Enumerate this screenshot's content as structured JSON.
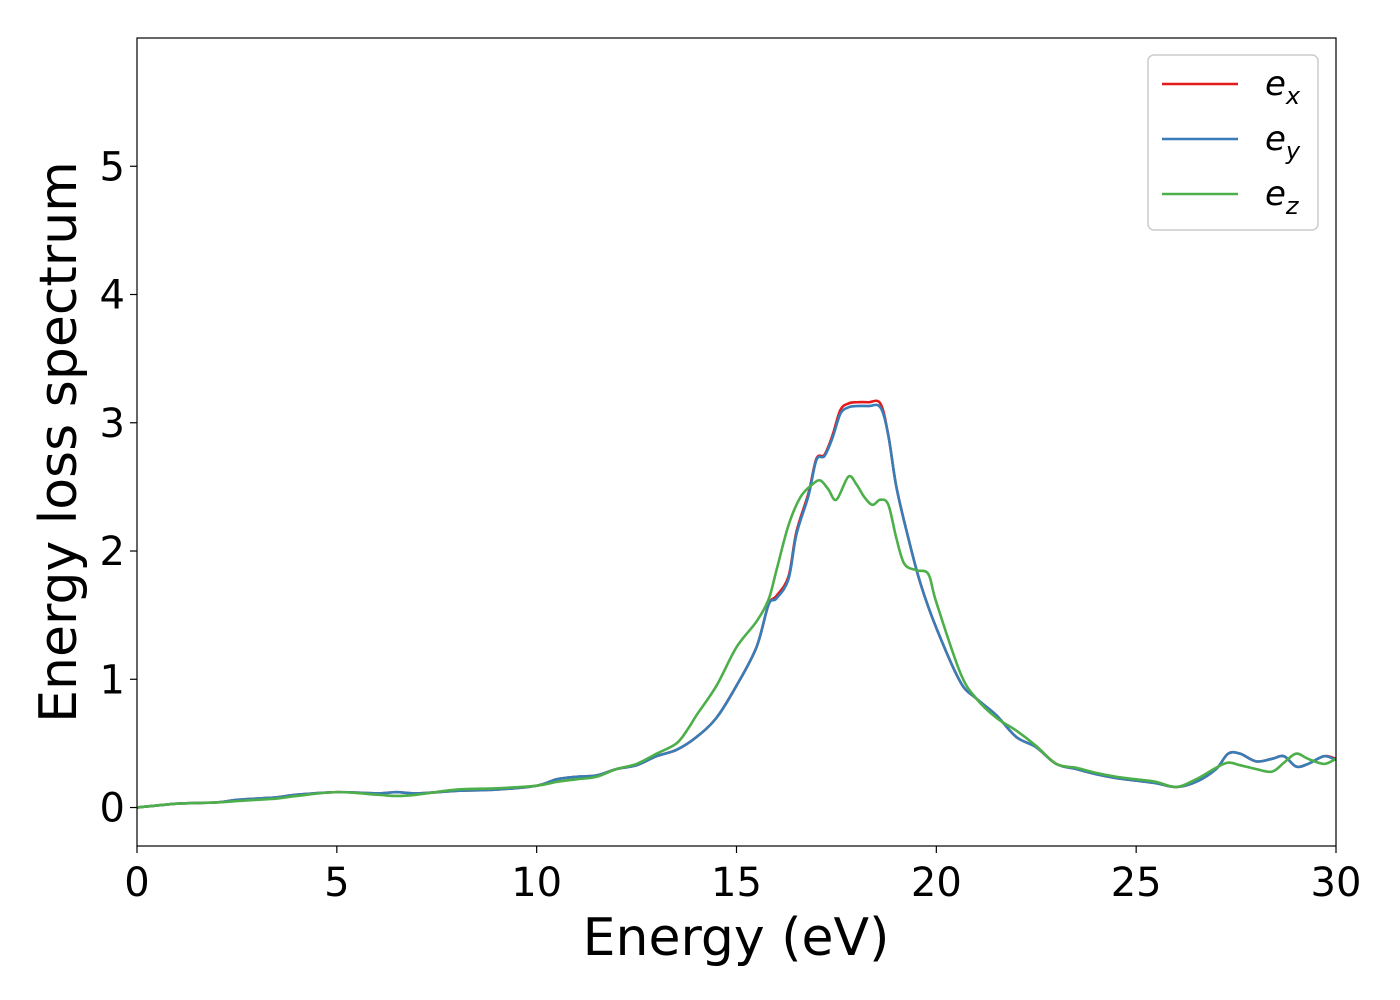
{
  "chart_data": {
    "type": "line",
    "xlabel": "Energy (eV)",
    "ylabel": "Energy loss spectrum",
    "xlim": [
      0,
      30
    ],
    "ylim": [
      -0.3,
      6.0
    ],
    "xticks": [
      0,
      5,
      10,
      15,
      20,
      25,
      30
    ],
    "yticks": [
      0,
      1,
      2,
      3,
      4,
      5
    ],
    "grid": false,
    "legend_position": "top-right",
    "series": [
      {
        "name": "e_x",
        "legend_base": "e",
        "legend_sub": "x",
        "color": "#e41a1c",
        "x": [
          0,
          1,
          2,
          2.5,
          3,
          3.5,
          4,
          5,
          6,
          6.5,
          7,
          8,
          9,
          10,
          10.5,
          11,
          11.5,
          12,
          12.5,
          13,
          13.5,
          14,
          14.5,
          15,
          15.5,
          15.8,
          16,
          16.3,
          16.5,
          16.8,
          17,
          17.2,
          17.4,
          17.6,
          17.8,
          18,
          18.3,
          18.6,
          18.8,
          19,
          19.3,
          19.6,
          20,
          20.6,
          21,
          21.5,
          22,
          22.5,
          23,
          23.5,
          24,
          24.5,
          25,
          25.5,
          26,
          26.5,
          27,
          27.3,
          27.6,
          28,
          28.4,
          28.7,
          29,
          29.3,
          29.7,
          30
        ],
        "y": [
          0.0,
          0.03,
          0.04,
          0.06,
          0.07,
          0.08,
          0.1,
          0.12,
          0.11,
          0.12,
          0.11,
          0.13,
          0.14,
          0.17,
          0.22,
          0.24,
          0.25,
          0.3,
          0.33,
          0.4,
          0.45,
          0.55,
          0.7,
          0.95,
          1.25,
          1.58,
          1.65,
          1.8,
          2.15,
          2.45,
          2.72,
          2.75,
          2.9,
          3.1,
          3.15,
          3.16,
          3.16,
          3.15,
          2.9,
          2.5,
          2.1,
          1.75,
          1.4,
          0.98,
          0.85,
          0.72,
          0.55,
          0.47,
          0.34,
          0.3,
          0.26,
          0.23,
          0.21,
          0.19,
          0.16,
          0.2,
          0.3,
          0.42,
          0.42,
          0.36,
          0.38,
          0.4,
          0.32,
          0.34,
          0.4,
          0.38
        ]
      },
      {
        "name": "e_y",
        "legend_base": "e",
        "legend_sub": "y",
        "color": "#377eb8",
        "x": [
          0,
          1,
          2,
          2.5,
          3,
          3.5,
          4,
          5,
          6,
          6.5,
          7,
          8,
          9,
          10,
          10.5,
          11,
          11.5,
          12,
          12.5,
          13,
          13.5,
          14,
          14.5,
          15,
          15.5,
          15.8,
          16,
          16.3,
          16.5,
          16.8,
          17,
          17.2,
          17.4,
          17.6,
          17.8,
          18,
          18.3,
          18.6,
          18.8,
          19,
          19.3,
          19.6,
          20,
          20.6,
          21,
          21.5,
          22,
          22.5,
          23,
          23.5,
          24,
          24.5,
          25,
          25.5,
          26,
          26.5,
          27,
          27.3,
          27.6,
          28,
          28.4,
          28.7,
          29,
          29.3,
          29.7,
          30
        ],
        "y": [
          0.0,
          0.03,
          0.04,
          0.06,
          0.07,
          0.08,
          0.1,
          0.12,
          0.11,
          0.12,
          0.11,
          0.13,
          0.14,
          0.17,
          0.22,
          0.24,
          0.25,
          0.3,
          0.33,
          0.4,
          0.45,
          0.55,
          0.7,
          0.95,
          1.25,
          1.58,
          1.63,
          1.78,
          2.13,
          2.43,
          2.71,
          2.74,
          2.88,
          3.07,
          3.12,
          3.13,
          3.13,
          3.12,
          2.9,
          2.5,
          2.1,
          1.75,
          1.4,
          0.98,
          0.85,
          0.72,
          0.55,
          0.47,
          0.34,
          0.3,
          0.26,
          0.23,
          0.21,
          0.19,
          0.16,
          0.2,
          0.3,
          0.42,
          0.42,
          0.36,
          0.38,
          0.4,
          0.32,
          0.34,
          0.4,
          0.37
        ]
      },
      {
        "name": "e_z",
        "legend_base": "e",
        "legend_sub": "z",
        "color": "#4daf4a",
        "x": [
          0,
          1,
          2,
          2.5,
          3,
          3.5,
          4,
          5,
          6,
          6.5,
          7,
          8,
          9,
          10,
          10.5,
          11,
          11.5,
          12,
          12.5,
          13,
          13.5,
          13.8,
          14,
          14.5,
          15,
          15.5,
          15.8,
          16,
          16.3,
          16.6,
          16.9,
          17.1,
          17.3,
          17.5,
          17.8,
          18,
          18.2,
          18.4,
          18.6,
          18.8,
          19,
          19.2,
          19.5,
          19.8,
          20,
          20.6,
          21,
          21.5,
          22,
          22.5,
          23,
          23.5,
          24,
          24.5,
          25,
          25.5,
          26,
          26.5,
          27,
          27.3,
          27.6,
          28,
          28.4,
          28.7,
          29,
          29.3,
          29.7,
          30
        ],
        "y": [
          0.0,
          0.03,
          0.04,
          0.05,
          0.06,
          0.07,
          0.09,
          0.12,
          0.1,
          0.09,
          0.1,
          0.14,
          0.15,
          0.17,
          0.2,
          0.22,
          0.24,
          0.3,
          0.34,
          0.42,
          0.5,
          0.62,
          0.72,
          0.95,
          1.25,
          1.45,
          1.62,
          1.85,
          2.2,
          2.42,
          2.52,
          2.55,
          2.48,
          2.4,
          2.58,
          2.52,
          2.42,
          2.36,
          2.4,
          2.36,
          2.1,
          1.9,
          1.85,
          1.82,
          1.6,
          1.05,
          0.85,
          0.7,
          0.6,
          0.48,
          0.34,
          0.31,
          0.27,
          0.24,
          0.22,
          0.2,
          0.16,
          0.22,
          0.31,
          0.35,
          0.33,
          0.3,
          0.28,
          0.35,
          0.42,
          0.38,
          0.34,
          0.38
        ]
      }
    ]
  }
}
